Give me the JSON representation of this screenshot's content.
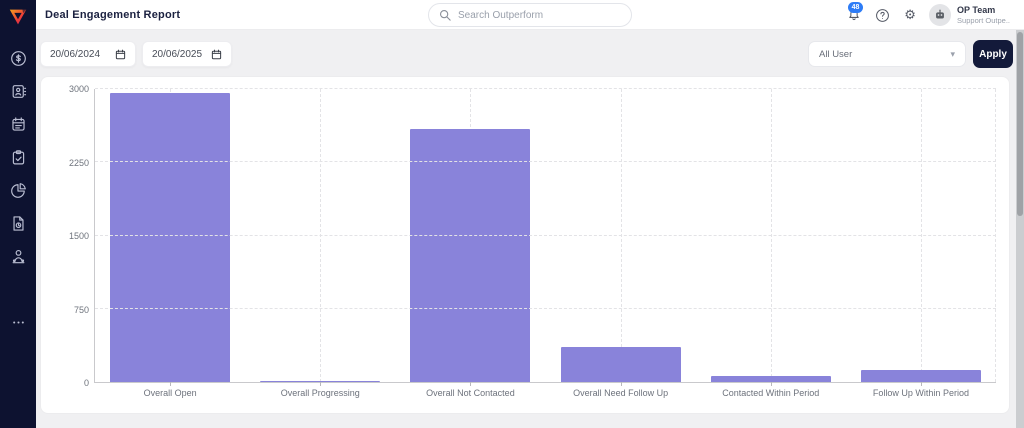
{
  "header": {
    "title": "Deal Engagement Report",
    "search_placeholder": "Search Outperform",
    "notification_count": "48",
    "user_name": "OP Team",
    "user_subtitle": "Support Outpe.."
  },
  "sidebar": {
    "items": [
      "deals-dollar",
      "contacts",
      "calendar",
      "tasks-clipboard",
      "reports-pie",
      "documents",
      "users",
      "more"
    ]
  },
  "filters": {
    "date_from": "20/06/2024",
    "date_to": "20/06/2025",
    "user_select": "All User",
    "apply_label": "Apply"
  },
  "colors": {
    "sidebar_bg": "#0d1230",
    "bar_color": "#8983da",
    "badge_blue": "#2e7cf6",
    "apply_bg": "#131a3a"
  },
  "chart_data": {
    "type": "bar",
    "categories": [
      "Overall Open",
      "Overall Progressing",
      "Overall Not Contacted",
      "Overall Need Follow Up",
      "Contacted Within Period",
      "Follow Up Within Period"
    ],
    "values": [
      2960,
      15,
      2590,
      360,
      65,
      125
    ],
    "title": "",
    "xlabel": "",
    "ylabel": "",
    "ylim": [
      0,
      3000
    ],
    "yticks": [
      0,
      750,
      1500,
      2250,
      3000
    ],
    "grid": "dashed",
    "legend": "none"
  }
}
